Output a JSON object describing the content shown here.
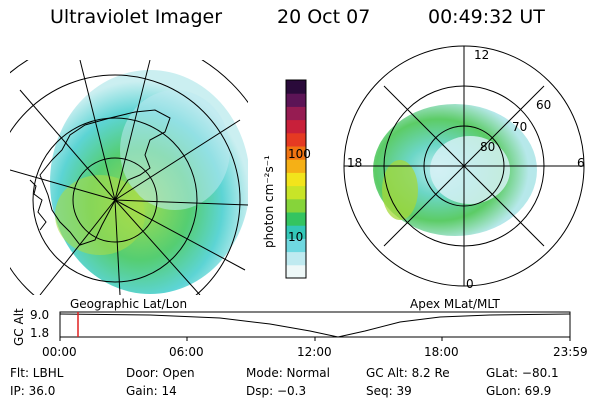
{
  "header": {
    "title": "Ultraviolet Imager",
    "date": "20 Oct 07",
    "time": "00:49:32 UT"
  },
  "left_panel": {
    "caption": "Geographic Lat/Lon"
  },
  "right_panel": {
    "caption": "Apex MLat/MLT",
    "mlt_labels": [
      "12",
      "18",
      "6",
      "0"
    ],
    "lat_labels": [
      "60",
      "70",
      "80"
    ]
  },
  "colorbar": {
    "unit": "photon cm⁻²s⁻¹",
    "ticks": [
      "100",
      "10"
    ],
    "colors": [
      "#eef8f8",
      "#bfeaf0",
      "#6fd8e0",
      "#33c7b8",
      "#34c460",
      "#86d43a",
      "#c8e428",
      "#f2e41c",
      "#f5b016",
      "#f07412",
      "#e53a22",
      "#c8203a",
      "#961c52",
      "#5c1456",
      "#2a0a3a"
    ]
  },
  "timeline": {
    "y_label": "GC Alt",
    "y_ticks": [
      "9.0",
      "1.8"
    ],
    "x_ticks": [
      "00:00",
      "06:00",
      "12:00",
      "18:00",
      "23:59"
    ],
    "marker_time": "00:49:32"
  },
  "footer": {
    "row1": {
      "filter": "Flt: LBHL",
      "door": "Door: Open",
      "mode": "Mode: Normal",
      "gc_alt": "GC Alt: 8.2 Re",
      "glat": "GLat: −80.1"
    },
    "row2": {
      "ip": "IP: 36.0",
      "gain": "Gain: 14",
      "dsp": "Dsp:    −0.3",
      "seq": "Seq: 39",
      "glon": "GLon:  69.9"
    }
  }
}
